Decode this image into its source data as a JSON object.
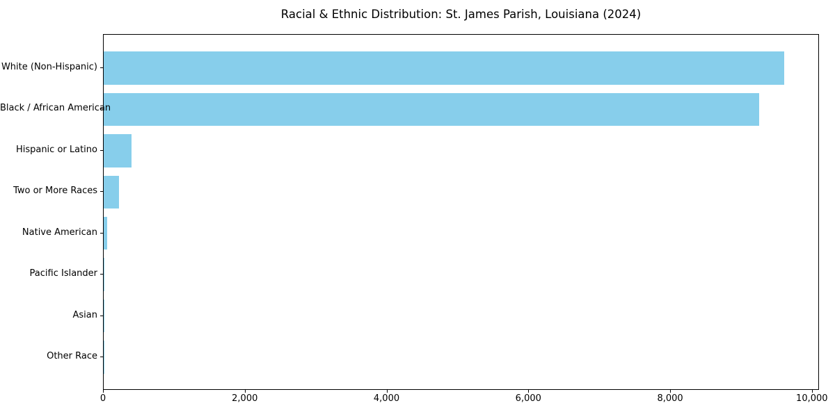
{
  "chart_data": {
    "type": "bar",
    "orientation": "horizontal",
    "title": "Racial & Ethnic Distribution: St. James Parish, Louisiana (2024)",
    "categories": [
      "White (Non-Hispanic)",
      "Black / African American",
      "Hispanic or Latino",
      "Two or More Races",
      "Native American",
      "Pacific Islander",
      "Asian",
      "Other Race"
    ],
    "values": [
      9600,
      9250,
      390,
      220,
      45,
      12,
      6,
      2
    ],
    "bar_color": "#87CEEB",
    "xlabel": "",
    "ylabel": "",
    "xlim": [
      0,
      10100
    ],
    "x_ticks": [
      0,
      2000,
      4000,
      6000,
      8000,
      10000
    ],
    "x_tick_labels": [
      "0",
      "2,000",
      "4,000",
      "6,000",
      "8,000",
      "10,000"
    ],
    "grid": false,
    "legend": null,
    "background_color": "#ffffff",
    "spine_color": "#000000"
  }
}
